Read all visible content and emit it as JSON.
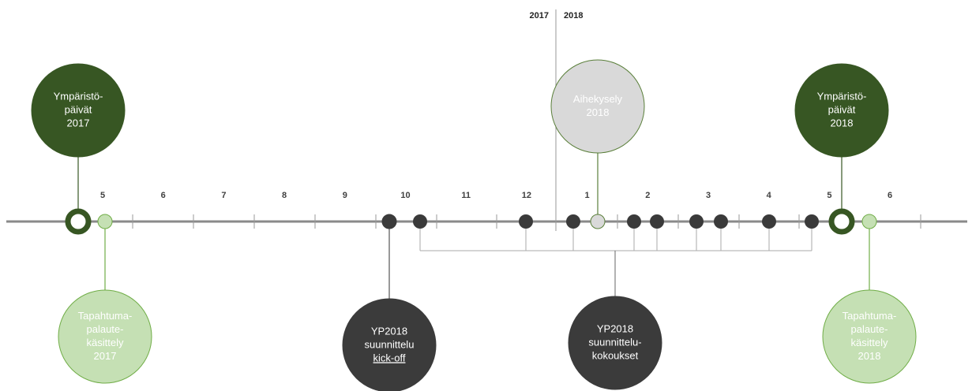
{
  "years": [
    "2017",
    "2018"
  ],
  "months": [
    "5",
    "6",
    "7",
    "8",
    "9",
    "10",
    "11",
    "12",
    "1",
    "2",
    "3",
    "4",
    "5",
    "6"
  ],
  "events": [
    {
      "lines": [
        "Ympäristö-",
        "päivät",
        "2017"
      ]
    },
    {
      "lines": [
        "Tapahtuma-",
        "palaute-",
        "käsittely",
        "2017"
      ]
    },
    {
      "lines": [
        "YP2018",
        "suunnittelu",
        "kick-off"
      ]
    },
    {
      "lines": [
        "Aihekysely",
        "2018"
      ]
    },
    {
      "lines": [
        "YP2018",
        "suunnittelu-",
        "kokoukset"
      ]
    },
    {
      "lines": [
        "Ympäristö-",
        "päivät",
        "2018"
      ]
    },
    {
      "lines": [
        "Tapahtuma-",
        "palaute-",
        "käsittely",
        "2018"
      ]
    }
  ]
}
